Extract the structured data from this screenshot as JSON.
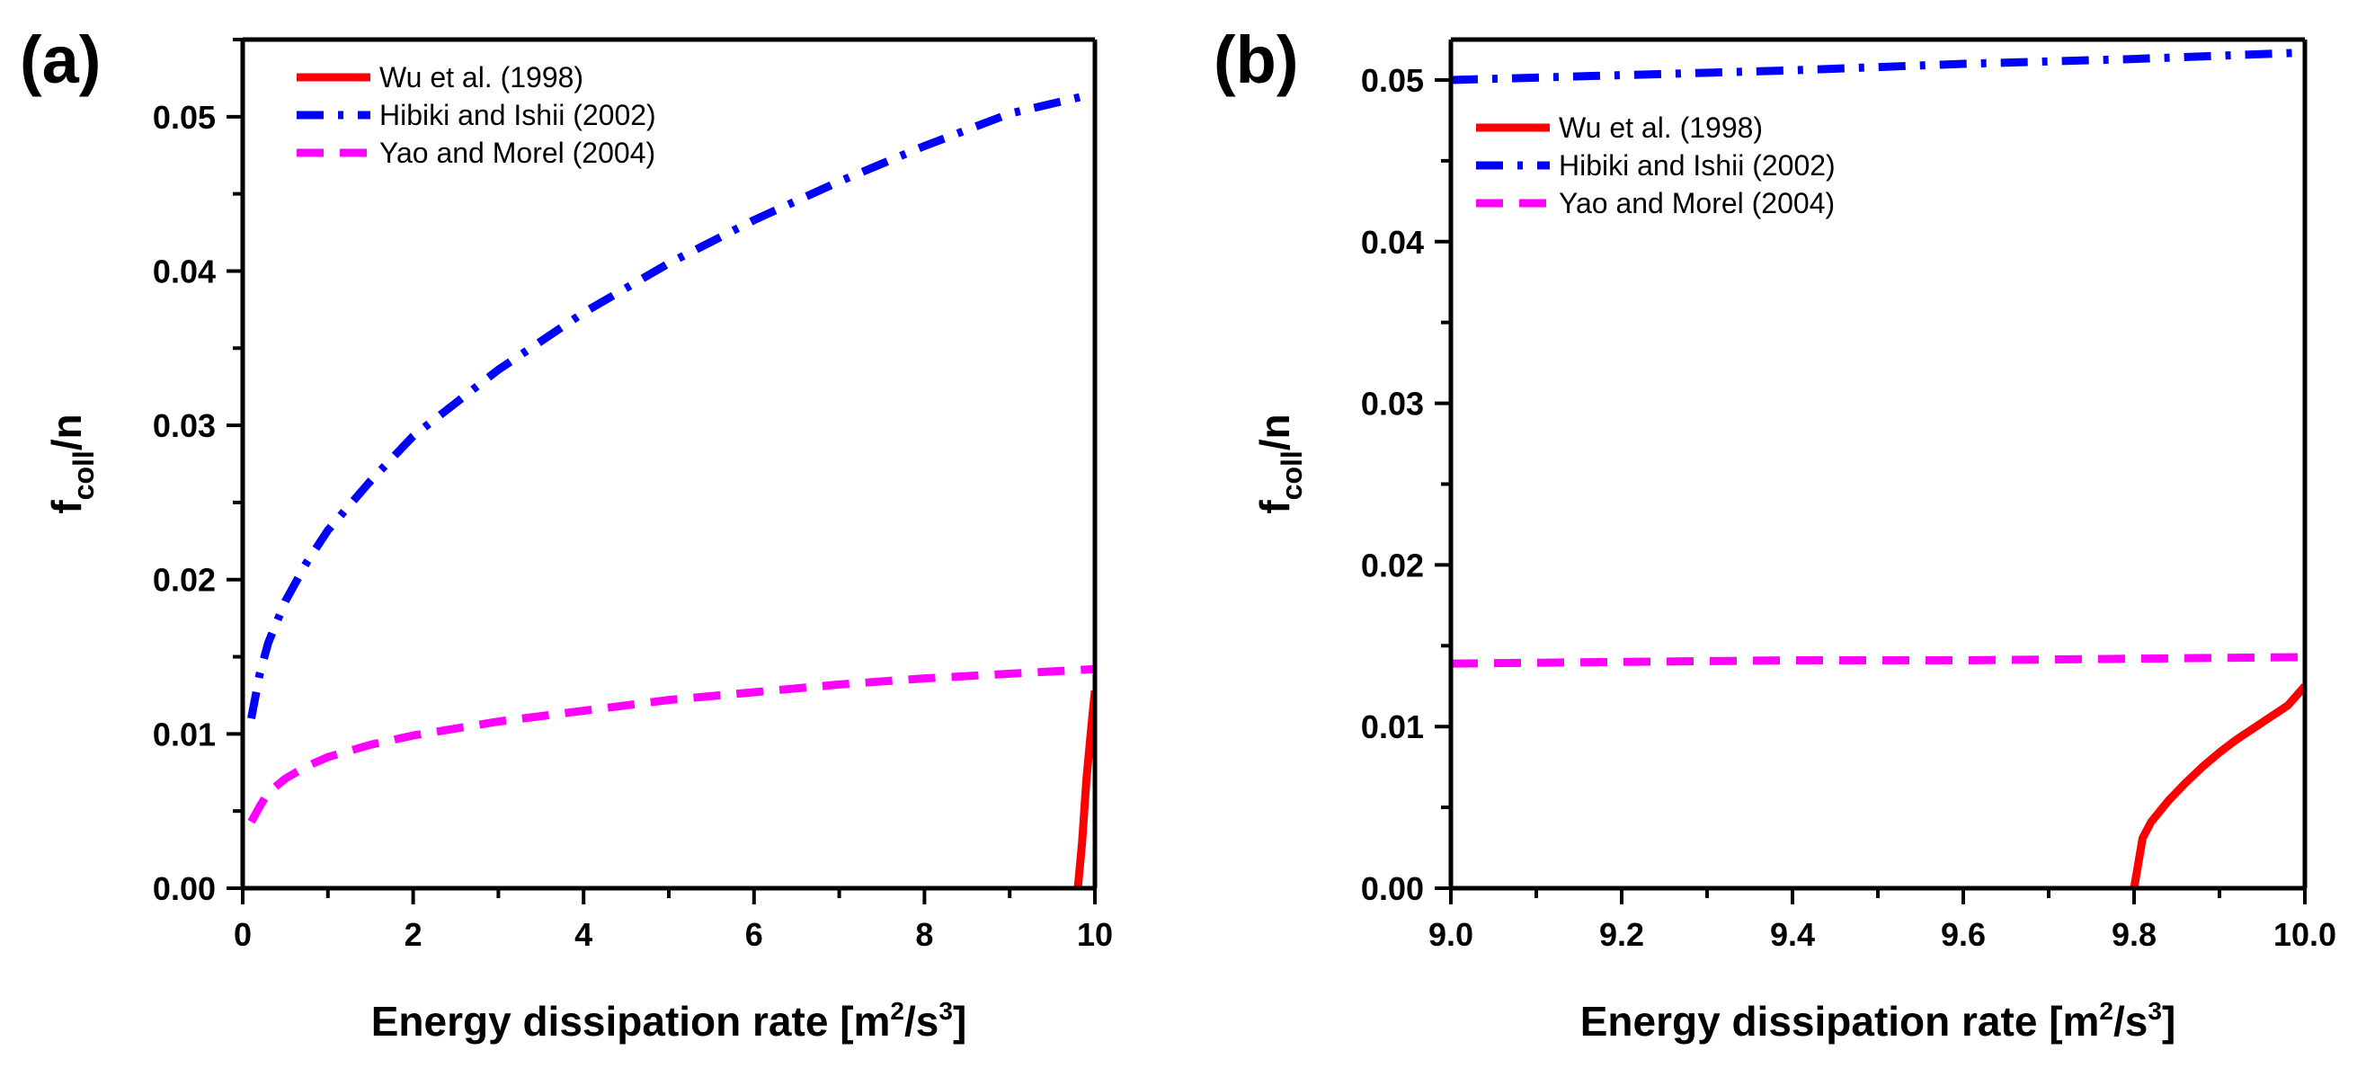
{
  "chart_data": [
    {
      "panel_label": "(a)",
      "type": "line",
      "title": "",
      "xlabel": "Energy dissipation rate [m²/s³]",
      "xlabel_parts": {
        "main": "Energy dissipation rate [m",
        "sup1": "2",
        "mid": "/s",
        "sup2": "3",
        "end": "]"
      },
      "ylabel": "f_coll/n",
      "ylabel_parts": {
        "main": "f",
        "sub": "coll",
        "end": "/n"
      },
      "xlim": [
        0,
        10
      ],
      "ylim": [
        0,
        0.055
      ],
      "xticks": [
        0,
        2,
        4,
        6,
        8,
        10
      ],
      "xtick_labels": [
        "0",
        "2",
        "4",
        "6",
        "8",
        "10"
      ],
      "xminor_step": 1,
      "yticks": [
        0.0,
        0.01,
        0.02,
        0.03,
        0.04,
        0.05
      ],
      "ytick_labels": [
        "0.00",
        "0.01",
        "0.02",
        "0.03",
        "0.04",
        "0.05"
      ],
      "yminor_step": 0.005,
      "grid": false,
      "legend_position": "top-left",
      "series": [
        {
          "name": "Wu et al. (1998)",
          "color": "#ff0000",
          "style": "solid",
          "x": [
            9.8,
            9.85,
            9.9,
            9.95,
            10.0
          ],
          "y": [
            0.0,
            0.003,
            0.007,
            0.01,
            0.0128
          ]
        },
        {
          "name": "Hibiki and Ishii (2002)",
          "color": "#0000ff",
          "style": "dashdot",
          "x": [
            0.1,
            0.2,
            0.3,
            0.5,
            0.75,
            1.0,
            1.5,
            2.0,
            3.0,
            4.0,
            5.0,
            6.0,
            7.0,
            8.0,
            9.0,
            10.0
          ],
          "y": [
            0.011,
            0.0139,
            0.0159,
            0.0186,
            0.0211,
            0.0232,
            0.0264,
            0.0293,
            0.0336,
            0.0373,
            0.0405,
            0.0433,
            0.0458,
            0.0481,
            0.0502,
            0.0515
          ]
        },
        {
          "name": "Yao and Morel (2004)",
          "color": "#ff00ff",
          "style": "dashed",
          "x": [
            0.1,
            0.2,
            0.3,
            0.5,
            0.75,
            1.0,
            1.5,
            2.0,
            3.0,
            4.0,
            5.0,
            6.0,
            7.0,
            8.0,
            9.0,
            10.0
          ],
          "y": [
            0.0043,
            0.0053,
            0.0062,
            0.0071,
            0.0079,
            0.0085,
            0.0093,
            0.0099,
            0.0108,
            0.0115,
            0.0122,
            0.0127,
            0.0132,
            0.0136,
            0.0139,
            0.0142
          ]
        }
      ]
    },
    {
      "panel_label": "(b)",
      "type": "line",
      "title": "",
      "xlabel": "Energy dissipation rate [m²/s³]",
      "xlabel_parts": {
        "main": "Energy dissipation rate [m",
        "sup1": "2",
        "mid": "/s",
        "sup2": "3",
        "end": "]"
      },
      "ylabel": "f_coll/n",
      "ylabel_parts": {
        "main": "f",
        "sub": "coll",
        "end": "/n"
      },
      "xlim": [
        9.0,
        10.0
      ],
      "ylim": [
        0,
        0.0525
      ],
      "xticks": [
        9.0,
        9.2,
        9.4,
        9.6,
        9.8,
        10.0
      ],
      "xtick_labels": [
        "9.0",
        "9.2",
        "9.4",
        "9.6",
        "9.8",
        "10.0"
      ],
      "xminor_step": 0.1,
      "yticks": [
        0.0,
        0.01,
        0.02,
        0.03,
        0.04,
        0.05
      ],
      "ytick_labels": [
        "0.00",
        "0.01",
        "0.02",
        "0.03",
        "0.04",
        "0.05"
      ],
      "yminor_step": 0.005,
      "grid": false,
      "legend_position": "top-left",
      "series": [
        {
          "name": "Wu et al. (1998)",
          "color": "#ff0000",
          "style": "solid",
          "x": [
            9.8,
            9.81,
            9.82,
            9.84,
            9.86,
            9.88,
            9.9,
            9.92,
            9.94,
            9.96,
            9.98,
            10.0
          ],
          "y": [
            0.0,
            0.0031,
            0.0041,
            0.0054,
            0.0065,
            0.0075,
            0.0084,
            0.0092,
            0.0099,
            0.0106,
            0.0113,
            0.0125
          ]
        },
        {
          "name": "Hibiki and Ishii (2002)",
          "color": "#0000ff",
          "style": "dashdot",
          "x": [
            9.0,
            9.2,
            9.4,
            9.6,
            9.8,
            10.0
          ],
          "y": [
            0.05,
            0.0503,
            0.0506,
            0.051,
            0.0513,
            0.0517
          ]
        },
        {
          "name": "Yao and Morel (2004)",
          "color": "#ff00ff",
          "style": "dashed",
          "x": [
            9.0,
            9.2,
            9.4,
            9.6,
            9.8,
            10.0
          ],
          "y": [
            0.0139,
            0.014,
            0.0141,
            0.0141,
            0.0142,
            0.0143
          ]
        }
      ]
    }
  ]
}
